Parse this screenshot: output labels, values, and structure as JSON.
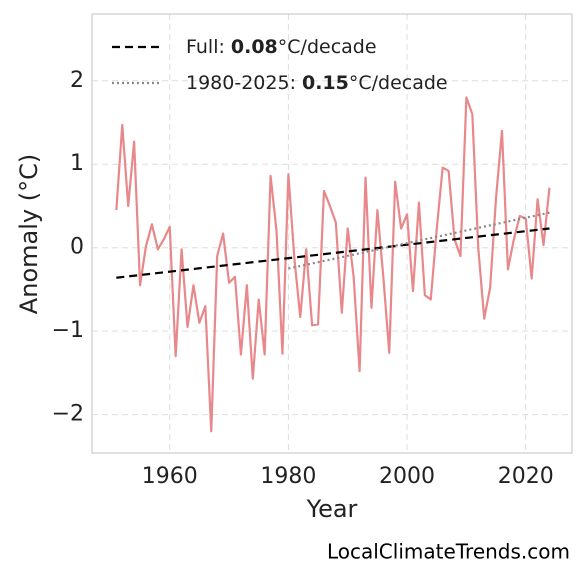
{
  "chart_data": {
    "type": "line",
    "xlabel": "Year",
    "ylabel": "Anomaly (°C)",
    "source": "LocalClimateTrends.com",
    "xlim": [
      1946.9,
      2027.8
    ],
    "xticks": [
      1960,
      1980,
      2000,
      2020
    ],
    "ylim": [
      -2.46,
      2.8
    ],
    "yticks": [
      {
        "value": -2,
        "label": "−2"
      },
      {
        "value": -1,
        "label": "−1"
      },
      0,
      1,
      2
    ],
    "grid": true,
    "legend": "upper left",
    "x": [
      1951,
      1952,
      1953,
      1954,
      1955,
      1956,
      1957,
      1958,
      1959,
      1960,
      1961,
      1962,
      1963,
      1964,
      1965,
      1966,
      1967,
      1968,
      1969,
      1970,
      1971,
      1972,
      1973,
      1974,
      1975,
      1976,
      1977,
      1978,
      1979,
      1980,
      1981,
      1982,
      1983,
      1984,
      1985,
      1986,
      1987,
      1988,
      1989,
      1990,
      1991,
      1992,
      1993,
      1994,
      1995,
      1996,
      1997,
      1998,
      1999,
      2000,
      2001,
      2002,
      2003,
      2004,
      2005,
      2006,
      2007,
      2008,
      2009,
      2010,
      2011,
      2012,
      2013,
      2014,
      2015,
      2016,
      2017,
      2018,
      2019,
      2020,
      2021,
      2022,
      2023,
      2024
    ],
    "values": [
      0.45,
      1.47,
      0.5,
      1.27,
      -0.45,
      0.02,
      0.28,
      -0.02,
      0.1,
      0.25,
      -1.3,
      -0.02,
      -0.95,
      -0.45,
      -0.9,
      -0.7,
      -2.2,
      -0.1,
      0.17,
      -0.42,
      -0.35,
      -1.28,
      -0.45,
      -1.57,
      -0.62,
      -1.28,
      0.86,
      0.2,
      -1.27,
      0.88,
      -0.12,
      -0.83,
      -0.02,
      -0.93,
      -0.92,
      0.68,
      0.5,
      0.3,
      -0.78,
      0.23,
      -0.35,
      -1.48,
      0.84,
      -0.72,
      0.45,
      -0.35,
      -1.26,
      0.79,
      0.23,
      0.4,
      -0.52,
      0.54,
      -0.57,
      -0.62,
      0.22,
      0.96,
      0.92,
      0.1,
      -0.1,
      1.8,
      1.6,
      0.0,
      -0.85,
      -0.48,
      0.6,
      1.4,
      -0.26,
      0.1,
      0.38,
      0.35,
      -0.37,
      0.58,
      0.03,
      0.72
    ],
    "color": "#e8888b",
    "series": [
      {
        "name": "Full:",
        "slope": 0.08,
        "slope_unit": "°C/decade",
        "color": "#000000",
        "style": "dashed",
        "x": [
          1951,
          2024
        ],
        "values": [
          -0.36,
          0.23
        ]
      },
      {
        "name": "1980-2025:",
        "slope": 0.15,
        "slope_unit": "°C/decade",
        "color": "#888888",
        "style": "dotted",
        "x": [
          1980,
          2024
        ],
        "values": [
          -0.25,
          0.42
        ]
      }
    ]
  }
}
